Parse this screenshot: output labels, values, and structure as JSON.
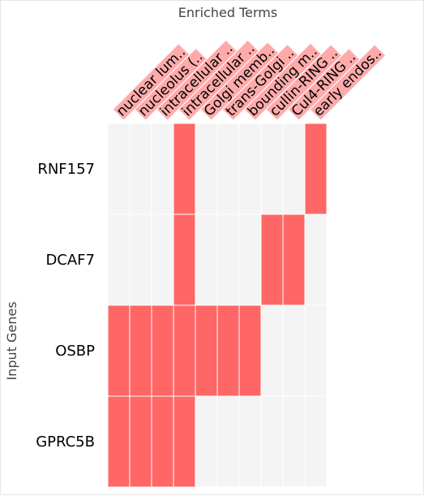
{
  "chart_data": {
    "type": "heatmap",
    "title": "Enriched Terms",
    "ylabel": "Input Genes",
    "columns": [
      "nuclear lum..",
      "nucleolus (..",
      "intracellular ..",
      "intracellular ..",
      "Golgi memb..",
      "trans-Golgi ..",
      "bounding m..",
      "cullin-RING ..",
      "Cul4-RING ..",
      "early endos.."
    ],
    "rows": [
      "RNF157",
      "DCAF7",
      "OSBP",
      "GPRC5B"
    ],
    "matrix": [
      [
        0,
        0,
        0,
        1,
        0,
        0,
        0,
        0,
        0,
        1
      ],
      [
        0,
        0,
        0,
        1,
        0,
        0,
        0,
        1,
        1,
        0
      ],
      [
        1,
        1,
        1,
        1,
        1,
        1,
        1,
        0,
        0,
        0
      ],
      [
        1,
        1,
        1,
        1,
        0,
        0,
        0,
        0,
        0,
        0
      ]
    ],
    "colors": {
      "on": "#ff6666",
      "off": "#f4f4f4",
      "label_highlight": "#ffaaaa",
      "grid": "#ffffff"
    }
  }
}
